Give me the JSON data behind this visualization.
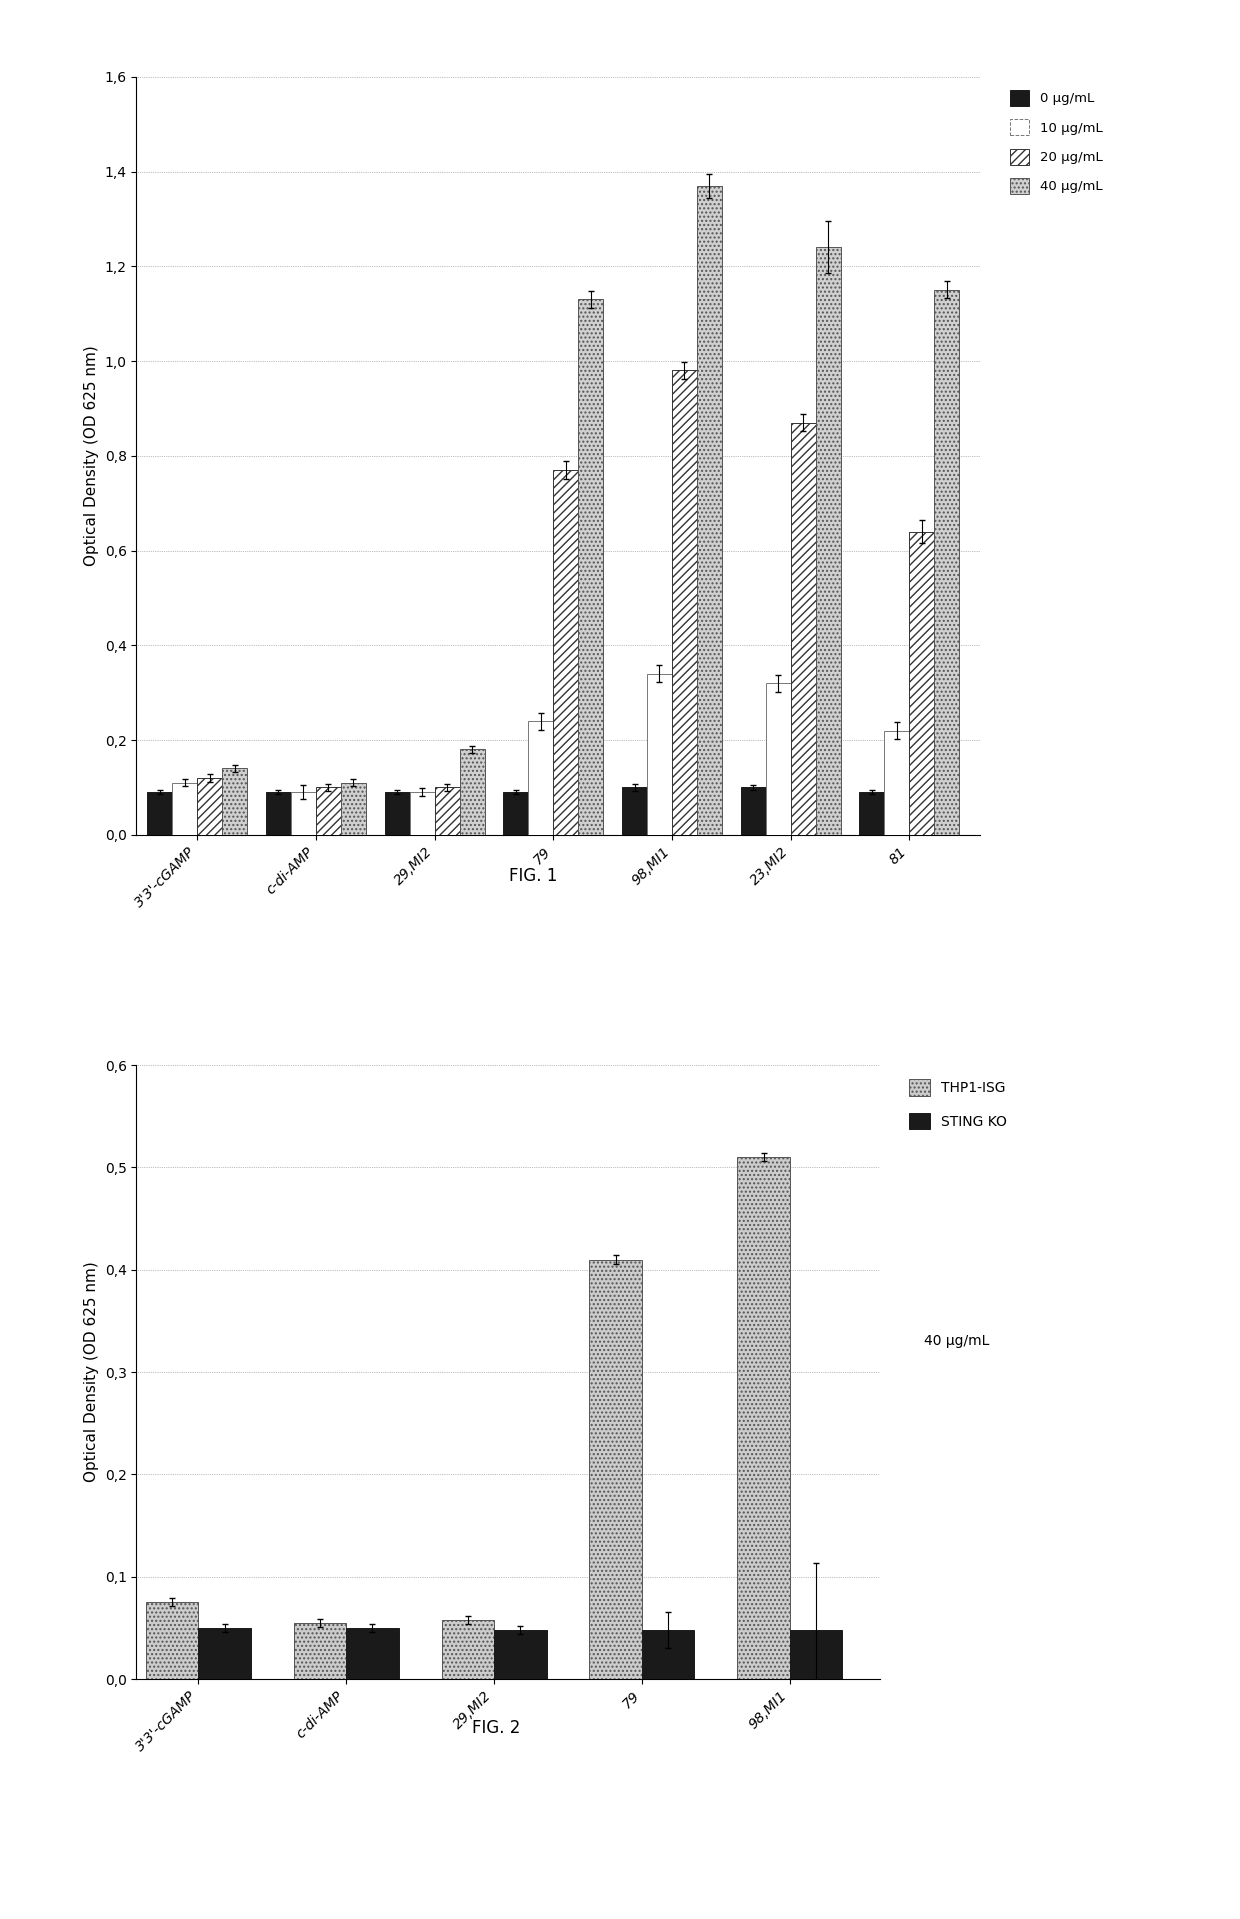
{
  "fig1": {
    "categories": [
      "3'3'-cGAMP",
      "c-di-AMP",
      "29,MI2",
      "79",
      "98,MI1",
      "23,MI2",
      "81"
    ],
    "series_order": [
      "0 ug/mL",
      "10 ug/mL",
      "20 ug/mL",
      "40 ug/mL"
    ],
    "series": {
      "0 ug/mL": [
        0.09,
        0.09,
        0.09,
        0.09,
        0.1,
        0.1,
        0.09
      ],
      "10 ug/mL": [
        0.11,
        0.09,
        0.09,
        0.24,
        0.34,
        0.32,
        0.22
      ],
      "20 ug/mL": [
        0.12,
        0.1,
        0.1,
        0.77,
        0.98,
        0.87,
        0.64
      ],
      "40 ug/mL": [
        0.14,
        0.11,
        0.18,
        1.13,
        1.37,
        1.24,
        1.15
      ]
    },
    "errors": {
      "0 ug/mL": [
        0.005,
        0.005,
        0.005,
        0.005,
        0.008,
        0.005,
        0.005
      ],
      "10 ug/mL": [
        0.008,
        0.015,
        0.008,
        0.018,
        0.018,
        0.018,
        0.018
      ],
      "20 ug/mL": [
        0.008,
        0.008,
        0.008,
        0.018,
        0.018,
        0.018,
        0.025
      ],
      "40 ug/mL": [
        0.008,
        0.008,
        0.008,
        0.018,
        0.025,
        0.055,
        0.018
      ]
    },
    "colors": [
      "#1a1a1a",
      "#ffffff",
      "#ffffff",
      "#d0d0d0"
    ],
    "hatches": [
      null,
      null,
      "////",
      "...."
    ],
    "edgecolors": [
      "#1a1a1a",
      "#777777",
      "#333333",
      "#555555"
    ],
    "edge_linestyles": [
      "solid",
      "dashed",
      "solid",
      "solid"
    ],
    "ylabel": "Optical Density (OD 625 nm)",
    "ylim": [
      0,
      1.6
    ],
    "yticks": [
      0,
      0.2,
      0.4,
      0.6,
      0.8,
      1.0,
      1.2,
      1.4,
      1.6
    ],
    "legend_labels": [
      "0 µg/mL",
      "10 µg/mL",
      "20 µg/mL",
      "40 µg/mL"
    ],
    "fig_label": "FIG. 1"
  },
  "fig2": {
    "categories": [
      "3'3'-cGAMP",
      "c-di-AMP",
      "29,MI2",
      "79",
      "98,MI1"
    ],
    "series_order": [
      "THP1-ISG",
      "STING KO"
    ],
    "series": {
      "THP1-ISG": [
        0.075,
        0.055,
        0.058,
        0.41,
        0.51
      ],
      "STING KO": [
        0.05,
        0.05,
        0.048,
        0.048,
        0.048
      ]
    },
    "errors": {
      "THP1-ISG": [
        0.004,
        0.004,
        0.004,
        0.004,
        0.004
      ],
      "STING KO": [
        0.004,
        0.004,
        0.004,
        0.018,
        0.065
      ]
    },
    "colors": [
      "#cccccc",
      "#1a1a1a"
    ],
    "hatches": [
      "....",
      null
    ],
    "edgecolors": [
      "#555555",
      "#1a1a1a"
    ],
    "ylabel": "Optical Density (OD 625 nm)",
    "ylim": [
      0,
      0.6
    ],
    "yticks": [
      0,
      0.1,
      0.2,
      0.3,
      0.4,
      0.5,
      0.6
    ],
    "legend_labels": [
      "THP1-ISG",
      "STING KO"
    ],
    "legend_extra": "40 µg/mL",
    "fig_label": "FIG. 2"
  },
  "background_color": "#ffffff"
}
